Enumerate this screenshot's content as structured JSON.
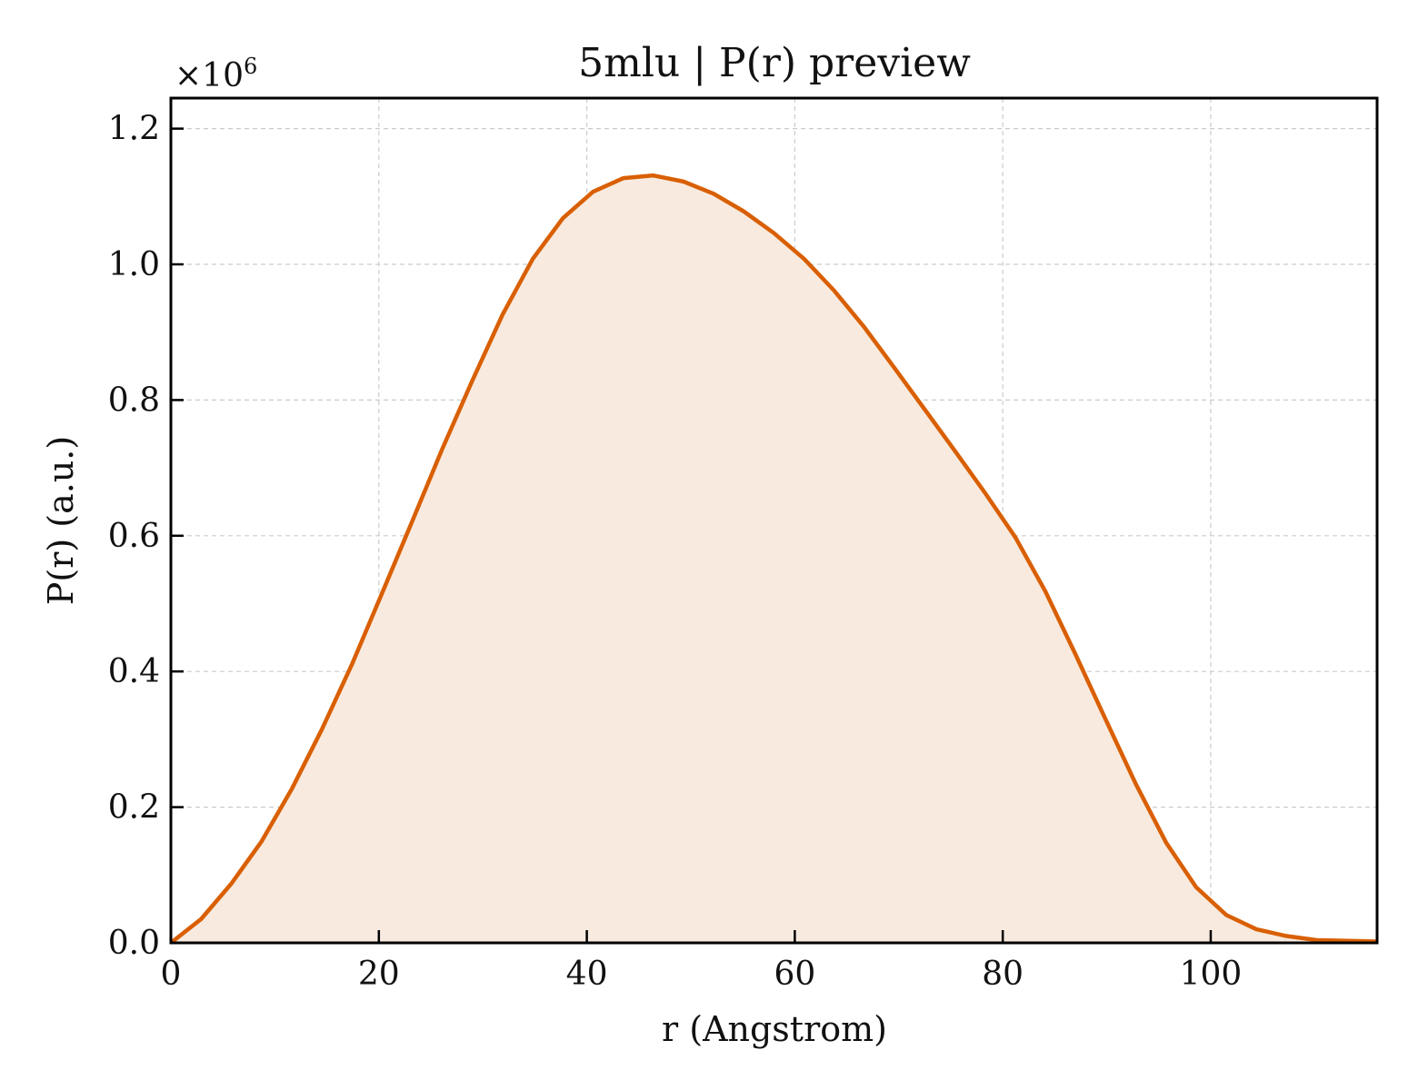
{
  "chart_data": {
    "type": "area",
    "title": "5mlu | P(r) preview",
    "xlabel": "r (Angstrom)",
    "ylabel": "P(r) (a.u.)",
    "y_offset_text": {
      "base": "×10",
      "exponent": "6"
    },
    "xlim": [
      0,
      116
    ],
    "ylim": [
      0,
      1.245
    ],
    "x_ticks": [
      0,
      20,
      40,
      60,
      80,
      100
    ],
    "x_tick_labels": [
      "0",
      "20",
      "40",
      "60",
      "80",
      "100"
    ],
    "y_ticks": [
      0,
      0.2,
      0.4,
      0.6,
      0.8,
      1.0,
      1.2
    ],
    "y_tick_labels": [
      "0.0",
      "0.2",
      "0.4",
      "0.6",
      "0.8",
      "1.0",
      "1.2"
    ],
    "grid": true,
    "line_color": "#d95f02",
    "fill_color": "#f8eadf",
    "series": [
      {
        "x": [
          0,
          2.9,
          5.8,
          8.7,
          11.6,
          14.5,
          17.4,
          20.3,
          23.2,
          26.1,
          29.0,
          31.9,
          34.8,
          37.7,
          40.6,
          43.5,
          46.4,
          49.3,
          52.2,
          55.1,
          58.0,
          60.9,
          63.8,
          66.7,
          69.6,
          72.5,
          75.4,
          78.3,
          81.2,
          84.1,
          87.0,
          89.9,
          92.8,
          95.7,
          98.6,
          101.5,
          104.4,
          107.3,
          110.2,
          113.1,
          116.0
        ],
        "y": [
          0.0,
          0.035,
          0.087,
          0.149,
          0.226,
          0.314,
          0.41,
          0.515,
          0.621,
          0.728,
          0.829,
          0.926,
          1.008,
          1.068,
          1.107,
          1.127,
          1.131,
          1.122,
          1.104,
          1.078,
          1.046,
          1.008,
          0.961,
          0.907,
          0.847,
          0.786,
          0.725,
          0.663,
          0.598,
          0.518,
          0.425,
          0.329,
          0.234,
          0.148,
          0.082,
          0.041,
          0.02,
          0.01,
          0.004,
          0.003,
          0.002
        ]
      }
    ]
  }
}
